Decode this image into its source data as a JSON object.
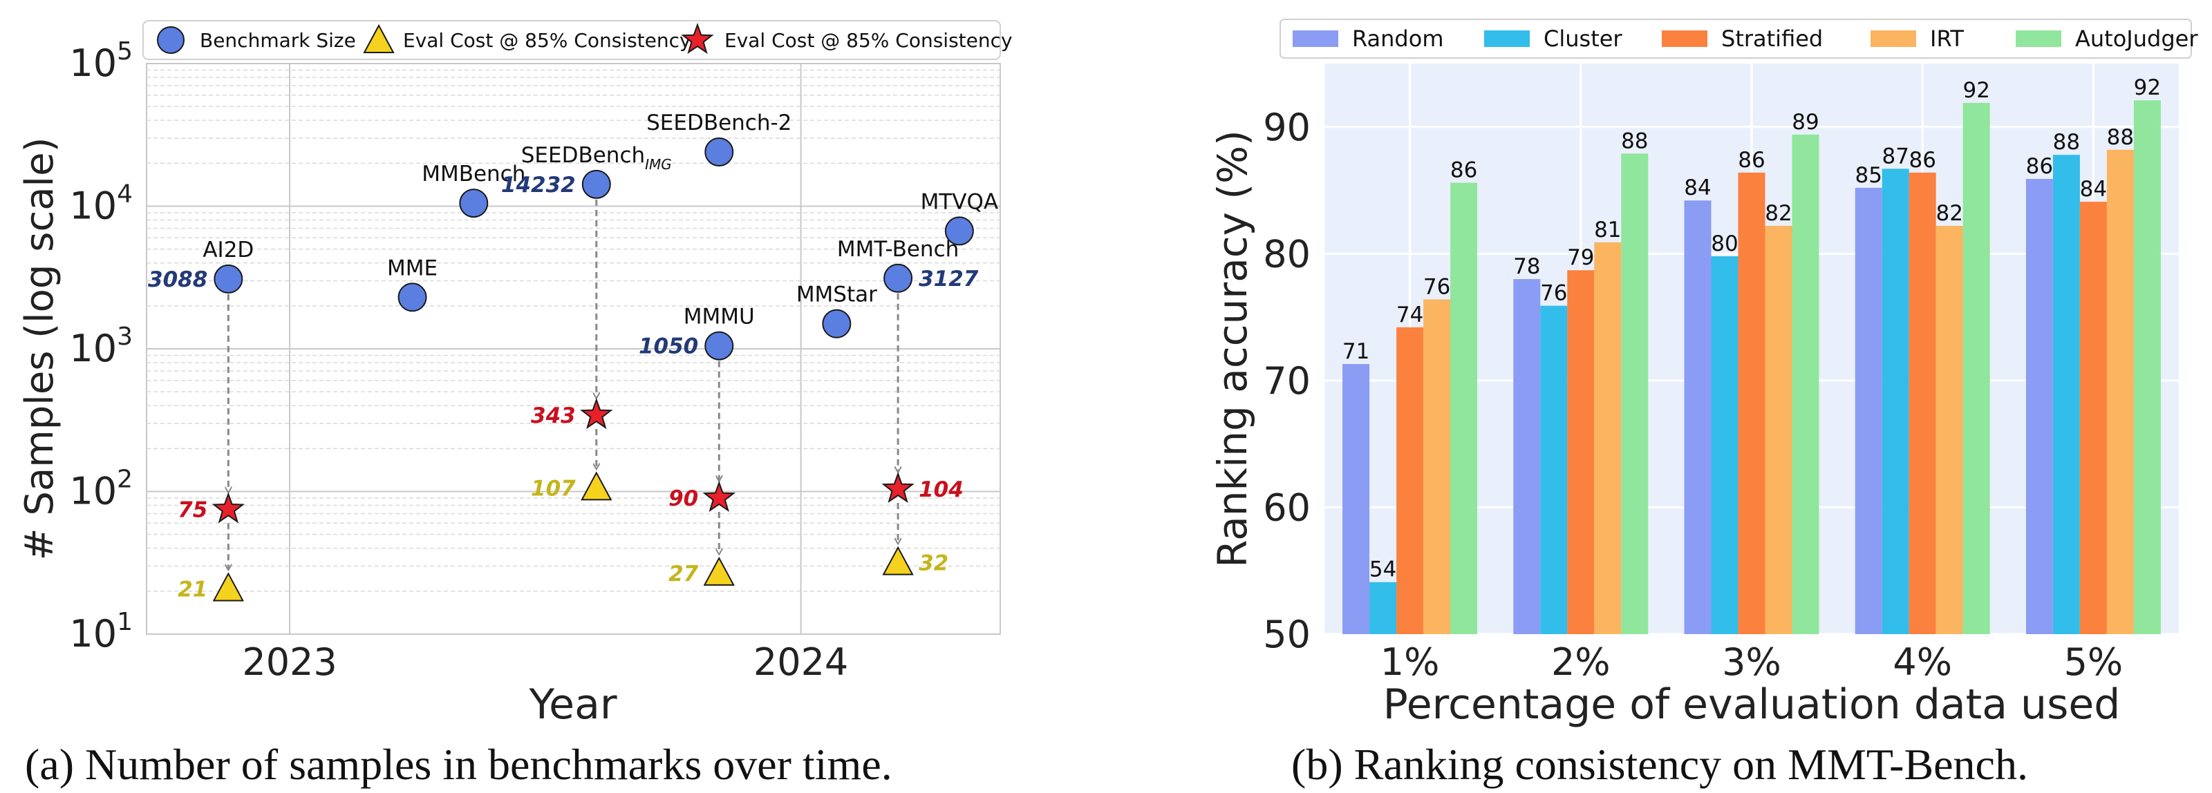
{
  "chart_data": [
    {
      "type": "scatter",
      "caption": "(a) Number of samples in benchmarks over time.",
      "xlabel": "Year",
      "ylabel": "# Samples (log scale)",
      "y_scale": "log",
      "ylim": [
        10,
        100000
      ],
      "xlim": [
        2022.72,
        2024.39
      ],
      "x_ticks": [
        {
          "value": 2023,
          "label": "2023"
        },
        {
          "value": 2024,
          "label": "2024"
        }
      ],
      "y_ticks": [
        {
          "value": 10,
          "base": "10",
          "exp": "1"
        },
        {
          "value": 100,
          "base": "10",
          "exp": "2"
        },
        {
          "value": 1000,
          "base": "10",
          "exp": "3"
        },
        {
          "value": 10000,
          "base": "10",
          "exp": "4"
        },
        {
          "value": 100000,
          "base": "10",
          "exp": "5"
        }
      ],
      "legend": {
        "position": "top",
        "items": [
          {
            "label": "Benchmark Size",
            "marker": "circle"
          },
          {
            "label": "Eval Cost @ 85% Consistency",
            "marker": "triangle"
          },
          {
            "label": "Eval Cost @ 85% Consistency",
            "marker": "star"
          }
        ]
      },
      "colors": {
        "circle": "#5b7fe0",
        "triangle": "#f5d21d",
        "star": "#e8202a",
        "size_text": "#233a78",
        "star_text": "#c8101e",
        "triangle_text": "#c4b51a"
      },
      "benchmarks": [
        {
          "name": "AI2D",
          "x": 2022.88,
          "size": 3088,
          "size_label": "3088",
          "star": 75,
          "star_label": "75",
          "triangle": 21,
          "triangle_label": "21"
        },
        {
          "name": "MME",
          "x": 2023.24,
          "size": 2300
        },
        {
          "name": "MMBench",
          "x": 2023.36,
          "size": 10500
        },
        {
          "name": "SEEDBench",
          "name_sub": "IMG",
          "x": 2023.6,
          "size": 14232,
          "size_label": "14232",
          "star": 343,
          "star_label": "343",
          "triangle": 107,
          "triangle_label": "107"
        },
        {
          "name": "SEEDBench-2",
          "x": 2023.84,
          "size": 24000
        },
        {
          "name": "MMMU",
          "x": 2023.84,
          "size": 1050,
          "size_label": "1050",
          "star": 90,
          "star_label": "90",
          "triangle": 27,
          "triangle_label": "27"
        },
        {
          "name": "MMStar",
          "x": 2024.07,
          "size": 1500
        },
        {
          "name": "MMT-Bench",
          "x": 2024.19,
          "size": 3127,
          "size_label": "3127",
          "star": 104,
          "star_label": "104",
          "triangle": 32,
          "triangle_label": "32"
        },
        {
          "name": "MTVQA",
          "x": 2024.31,
          "size": 6700
        }
      ]
    },
    {
      "type": "bar",
      "caption": "(b) Ranking consistency on MMT-Bench.",
      "xlabel": "Percentage of evaluation data used",
      "ylabel": "Ranking accuracy (%)",
      "ylim": [
        50,
        95
      ],
      "y_ticks": [
        50,
        60,
        70,
        80,
        90
      ],
      "categories": [
        "1%",
        "2%",
        "3%",
        "4%",
        "5%"
      ],
      "legend_position": "top",
      "series": [
        {
          "name": "Random",
          "color": "#8b9cf4",
          "values": [
            71.3,
            78.0,
            84.2,
            85.2,
            85.9
          ],
          "labels": [
            "71",
            "78",
            "84",
            "85",
            "86"
          ]
        },
        {
          "name": "Cluster",
          "color": "#33bdea",
          "values": [
            54.1,
            75.9,
            79.8,
            86.7,
            87.8
          ],
          "labels": [
            "54",
            "76",
            "80",
            "87",
            "88"
          ]
        },
        {
          "name": "Stratified",
          "color": "#fb813f",
          "values": [
            74.2,
            78.7,
            86.4,
            86.4,
            84.1
          ],
          "labels": [
            "74",
            "79",
            "86",
            "86",
            "84"
          ]
        },
        {
          "name": "IRT",
          "color": "#fbb45f",
          "values": [
            76.4,
            80.9,
            82.2,
            82.2,
            88.2
          ],
          "labels": [
            "76",
            "81",
            "82",
            "82",
            "88"
          ]
        },
        {
          "name": "AutoJudger",
          "color": "#90e69c",
          "values": [
            85.6,
            87.9,
            89.4,
            91.9,
            92.1
          ],
          "labels": [
            "86",
            "88",
            "89",
            "92",
            "92"
          ]
        }
      ]
    }
  ]
}
